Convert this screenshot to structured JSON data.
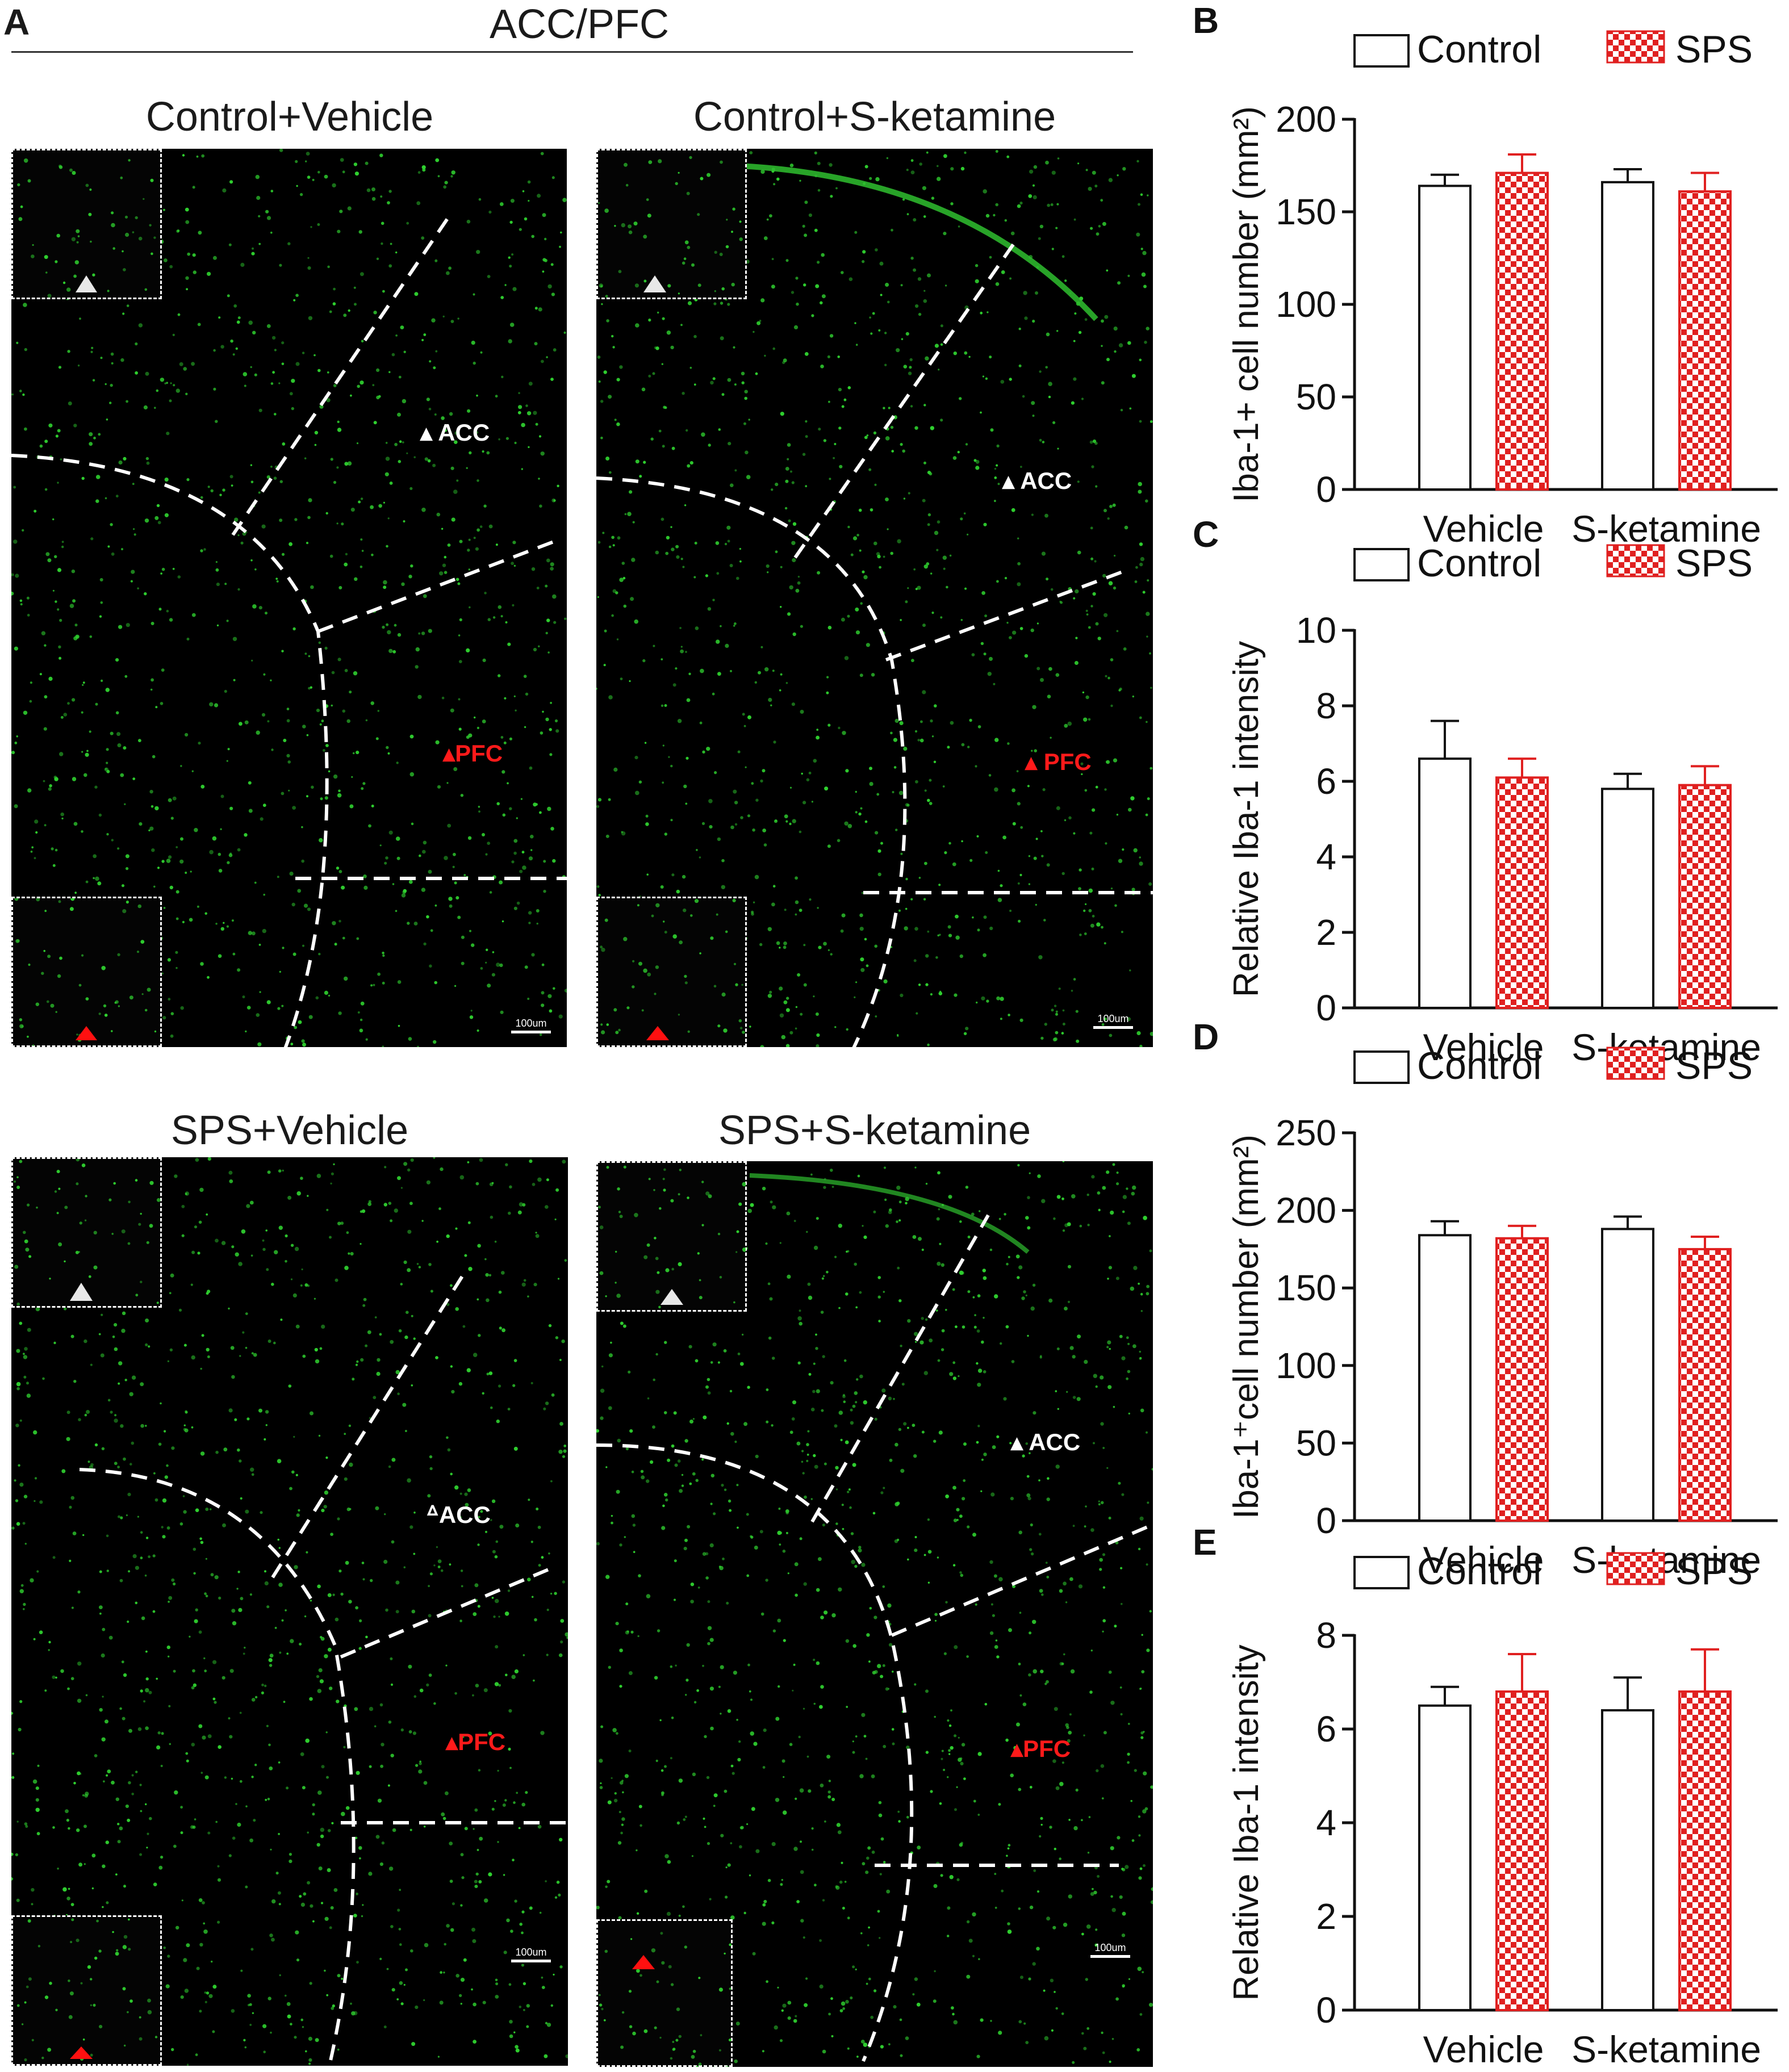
{
  "panel_a": {
    "letter": "A",
    "title": "ACC/PFC",
    "images": [
      {
        "title": "Control+Vehicle",
        "acc_label": "ACC",
        "pfc_label": "PFC",
        "scale": "100um"
      },
      {
        "title": "Control+S-ketamine",
        "acc_label": "ACC",
        "pfc_label": "PFC",
        "scale": "100um"
      },
      {
        "title": "SPS+Vehicle",
        "acc_label": "ACC",
        "pfc_label": "PFC",
        "scale": "100um"
      },
      {
        "title": "SPS+S-ketamine",
        "acc_label": "ACC",
        "pfc_label": "PFC",
        "scale": "100um"
      }
    ]
  },
  "colors": {
    "control_fill": "#ffffff",
    "sps_fill": "#e02020",
    "sps_check": "#e02020",
    "micro_bg": "#000000",
    "cell_green": "#2fd02f"
  },
  "chart_data": [
    {
      "letter": "B",
      "type": "bar",
      "categories": [
        "Vehicle",
        "S-ketamine"
      ],
      "ylabel": "Iba-1+ cell number (mm²)",
      "ylim": [
        0,
        200
      ],
      "yticks": [
        0,
        50,
        100,
        150,
        200
      ],
      "series": [
        {
          "name": "Control",
          "values": [
            164,
            166
          ],
          "err": [
            6,
            7
          ]
        },
        {
          "name": "SPS",
          "values": [
            171,
            161
          ],
          "err": [
            10,
            10
          ]
        }
      ]
    },
    {
      "letter": "C",
      "type": "bar",
      "categories": [
        "Vehicle",
        "S-ketamine"
      ],
      "ylabel": "Relative Iba-1 intensity",
      "ylim": [
        0,
        10
      ],
      "yticks": [
        0,
        2,
        4,
        6,
        8,
        10
      ],
      "series": [
        {
          "name": "Control",
          "values": [
            6.6,
            5.8
          ],
          "err": [
            1.0,
            0.4
          ]
        },
        {
          "name": "SPS",
          "values": [
            6.1,
            5.9
          ],
          "err": [
            0.5,
            0.5
          ]
        }
      ]
    },
    {
      "letter": "D",
      "type": "bar",
      "categories": [
        "Vehicle",
        "S-ketamine"
      ],
      "ylabel": "Iba-1⁺cell number (mm²)",
      "ylim": [
        0,
        250
      ],
      "yticks": [
        0,
        50,
        100,
        150,
        200,
        250
      ],
      "series": [
        {
          "name": "Control",
          "values": [
            184,
            188
          ],
          "err": [
            9,
            8
          ]
        },
        {
          "name": "SPS",
          "values": [
            182,
            175
          ],
          "err": [
            8,
            8
          ]
        }
      ]
    },
    {
      "letter": "E",
      "type": "bar",
      "categories": [
        "Vehicle",
        "S-ketamine"
      ],
      "ylabel": "Relative Iba-1 intensity",
      "ylim": [
        0,
        8
      ],
      "yticks": [
        0,
        2,
        4,
        6,
        8
      ],
      "series": [
        {
          "name": "Control",
          "values": [
            6.5,
            6.4
          ],
          "err": [
            0.4,
            0.7
          ]
        },
        {
          "name": "SPS",
          "values": [
            6.8,
            6.8
          ],
          "err": [
            0.8,
            0.9
          ]
        }
      ]
    }
  ]
}
